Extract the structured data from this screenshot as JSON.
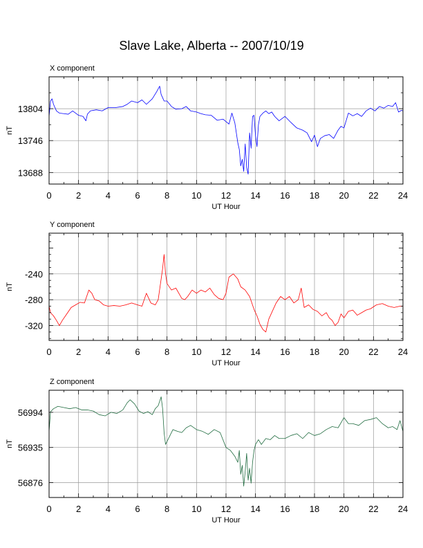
{
  "title": "Slave Lake, Alberta -- 2007/10/19",
  "chart_data": [
    {
      "type": "line",
      "panel_title": "X component",
      "xlabel": "UT Hour",
      "ylabel": "nT",
      "xlim": [
        0,
        24
      ],
      "ylim": [
        13667,
        13862
      ],
      "xticks": [
        0,
        2,
        4,
        6,
        8,
        10,
        12,
        14,
        16,
        18,
        20,
        22,
        24
      ],
      "yticks": [
        13688,
        13746,
        13804
      ],
      "grid": true,
      "color": "#0000ff",
      "series": [
        {
          "x": [
            0,
            0.1,
            0.2,
            0.3,
            0.5,
            0.7,
            1.0,
            1.3,
            1.6,
            2.0,
            2.3,
            2.5,
            2.6,
            2.8,
            3.2,
            3.6,
            4.0,
            4.5,
            5.0,
            5.3,
            5.6,
            6.0,
            6.3,
            6.6,
            7.0,
            7.3,
            7.5,
            7.6,
            7.8,
            8.0,
            8.3,
            8.6,
            9.0,
            9.3,
            9.6,
            10.0,
            10.3,
            10.6,
            11.0,
            11.4,
            11.8,
            12.2,
            12.4,
            12.6,
            12.8,
            12.9,
            13.0,
            13.1,
            13.2,
            13.3,
            13.4,
            13.5,
            13.6,
            13.7,
            13.8,
            13.9,
            14.0,
            14.1,
            14.2,
            14.3,
            14.5,
            14.7,
            14.9,
            15.1,
            15.3,
            15.6,
            16.0,
            16.4,
            16.8,
            17.2,
            17.5,
            17.8,
            18.0,
            18.2,
            18.4,
            18.7,
            19.0,
            19.3,
            19.6,
            19.8,
            20.0,
            20.3,
            20.6,
            20.9,
            21.2,
            21.5,
            21.8,
            22.1,
            22.4,
            22.7,
            23.0,
            23.3,
            23.5,
            23.7,
            23.9,
            24.0
          ],
          "y": [
            13790,
            13818,
            13822,
            13812,
            13800,
            13796,
            13795,
            13794,
            13800,
            13792,
            13790,
            13782,
            13794,
            13800,
            13802,
            13800,
            13806,
            13806,
            13808,
            13812,
            13818,
            13815,
            13820,
            13812,
            13822,
            13835,
            13845,
            13830,
            13818,
            13818,
            13808,
            13803,
            13804,
            13808,
            13800,
            13798,
            13795,
            13793,
            13792,
            13783,
            13785,
            13776,
            13796,
            13778,
            13742,
            13730,
            13700,
            13712,
            13690,
            13740,
            13697,
            13685,
            13760,
            13732,
            13790,
            13792,
            13755,
            13735,
            13775,
            13790,
            13796,
            13800,
            13795,
            13798,
            13790,
            13782,
            13790,
            13779,
            13769,
            13765,
            13760,
            13744,
            13756,
            13735,
            13750,
            13755,
            13757,
            13750,
            13765,
            13772,
            13769,
            13796,
            13791,
            13795,
            13790,
            13800,
            13805,
            13800,
            13808,
            13805,
            13810,
            13808,
            13815,
            13798,
            13801,
            13800
          ]
        }
      ]
    },
    {
      "type": "line",
      "panel_title": "Y component",
      "xlabel": "UT Hour",
      "ylabel": "nT",
      "xlim": [
        0,
        24
      ],
      "ylim": [
        -343,
        -177
      ],
      "xticks": [
        0,
        2,
        4,
        6,
        8,
        10,
        12,
        14,
        16,
        18,
        20,
        22,
        24
      ],
      "yticks": [
        -240,
        -280,
        -320
      ],
      "grid": true,
      "color": "#ff0000",
      "series": [
        {
          "x": [
            0,
            0.1,
            0.3,
            0.5,
            0.7,
            0.9,
            1.2,
            1.5,
            1.8,
            2.1,
            2.4,
            2.7,
            2.9,
            3.1,
            3.4,
            3.7,
            4.0,
            4.4,
            4.8,
            5.2,
            5.6,
            6.0,
            6.3,
            6.6,
            6.9,
            7.2,
            7.4,
            7.6,
            7.7,
            7.8,
            7.9,
            8.0,
            8.3,
            8.6,
            8.8,
            9.0,
            9.2,
            9.4,
            9.7,
            10.0,
            10.3,
            10.6,
            10.9,
            11.2,
            11.5,
            11.8,
            12.0,
            12.2,
            12.5,
            12.8,
            13.0,
            13.3,
            13.6,
            13.9,
            14.1,
            14.3,
            14.5,
            14.7,
            14.9,
            15.1,
            15.4,
            15.7,
            16.0,
            16.3,
            16.6,
            16.9,
            17.1,
            17.3,
            17.6,
            17.9,
            18.2,
            18.5,
            18.8,
            19.0,
            19.2,
            19.4,
            19.6,
            19.8,
            20.0,
            20.3,
            20.6,
            20.9,
            21.2,
            21.5,
            21.8,
            22.2,
            22.6,
            23.0,
            23.4,
            23.8,
            24.0
          ],
          "y": [
            -290,
            -300,
            -305,
            -312,
            -320,
            -312,
            -302,
            -292,
            -288,
            -284,
            -285,
            -265,
            -270,
            -280,
            -282,
            -288,
            -290,
            -289,
            -290,
            -288,
            -285,
            -288,
            -290,
            -270,
            -285,
            -288,
            -280,
            -248,
            -232,
            -210,
            -240,
            -255,
            -265,
            -262,
            -270,
            -278,
            -280,
            -275,
            -265,
            -270,
            -265,
            -268,
            -262,
            -272,
            -278,
            -280,
            -270,
            -245,
            -240,
            -248,
            -260,
            -265,
            -275,
            -295,
            -305,
            -318,
            -326,
            -330,
            -310,
            -300,
            -285,
            -275,
            -280,
            -275,
            -285,
            -280,
            -262,
            -292,
            -288,
            -295,
            -298,
            -305,
            -300,
            -308,
            -312,
            -320,
            -315,
            -302,
            -308,
            -298,
            -296,
            -304,
            -300,
            -296,
            -294,
            -288,
            -286,
            -290,
            -292,
            -290,
            -290
          ]
        }
      ]
    },
    {
      "type": "line",
      "panel_title": "Z component",
      "xlabel": "UT Hour",
      "ylabel": "nT",
      "xlim": [
        0,
        24
      ],
      "ylim": [
        56851,
        57031
      ],
      "xticks": [
        0,
        2,
        4,
        6,
        8,
        10,
        12,
        14,
        16,
        18,
        20,
        22,
        24
      ],
      "yticks": [
        56876,
        56935,
        56994
      ],
      "grid": true,
      "color": "#1f6b3f",
      "series": [
        {
          "x": [
            0,
            0.1,
            0.3,
            0.6,
            1.0,
            1.4,
            1.8,
            2.2,
            2.6,
            3.0,
            3.4,
            3.8,
            4.2,
            4.6,
            5.0,
            5.3,
            5.5,
            5.8,
            6.1,
            6.4,
            6.7,
            7.0,
            7.2,
            7.4,
            7.6,
            7.7,
            7.8,
            7.9,
            8.0,
            8.2,
            8.4,
            8.7,
            9.0,
            9.3,
            9.6,
            10.0,
            10.4,
            10.8,
            11.2,
            11.6,
            12.0,
            12.3,
            12.6,
            12.8,
            12.9,
            13.0,
            13.1,
            13.2,
            13.3,
            13.4,
            13.5,
            13.6,
            13.7,
            13.8,
            13.9,
            14.0,
            14.2,
            14.4,
            14.7,
            15.0,
            15.3,
            15.6,
            16.0,
            16.4,
            16.8,
            17.2,
            17.6,
            18.0,
            18.4,
            18.8,
            19.2,
            19.6,
            20.0,
            20.3,
            20.6,
            21.0,
            21.4,
            21.8,
            22.2,
            22.6,
            23.0,
            23.3,
            23.6,
            23.8,
            24.0
          ],
          "y": [
            56962,
            56995,
            57000,
            57004,
            57002,
            57000,
            57002,
            56998,
            56998,
            56996,
            56990,
            56988,
            56994,
            56992,
            56998,
            57010,
            57015,
            57008,
            56996,
            56992,
            56995,
            56990,
            57000,
            57005,
            57020,
            57000,
            56960,
            56940,
            56945,
            56955,
            56965,
            56962,
            56960,
            56968,
            56972,
            56965,
            56962,
            56957,
            56965,
            56960,
            56935,
            56930,
            56920,
            56910,
            56930,
            56890,
            56905,
            56870,
            56895,
            56925,
            56880,
            56900,
            56875,
            56910,
            56930,
            56940,
            56948,
            56940,
            56950,
            56948,
            56955,
            56950,
            56950,
            56955,
            56958,
            56950,
            56960,
            56955,
            56958,
            56965,
            56970,
            56968,
            56985,
            56975,
            56975,
            56972,
            56980,
            56982,
            56985,
            56975,
            56968,
            56970,
            56965,
            56980,
            56962
          ]
        }
      ]
    }
  ]
}
